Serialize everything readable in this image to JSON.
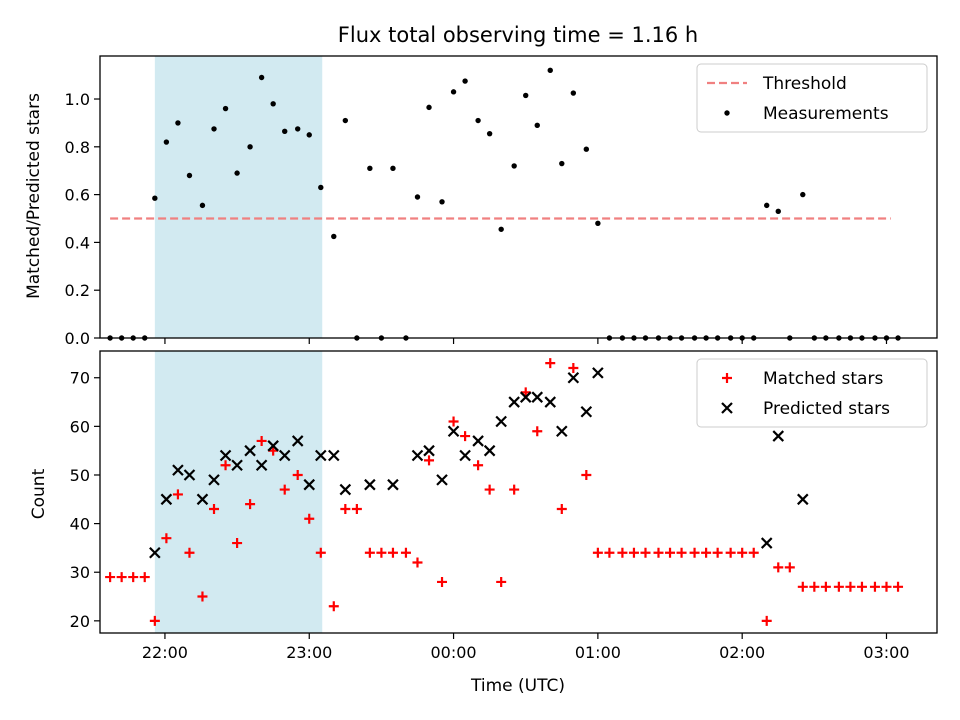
{
  "chart_data": [
    {
      "type": "scatter",
      "title": "Flux total observing time = 1.16 h",
      "xlabel": "",
      "ylabel": "Matched/Predicted stars",
      "ylim": [
        0,
        1.18
      ],
      "yticks": [
        "0.0",
        "0.2",
        "0.4",
        "0.6",
        "0.8",
        "1.0"
      ],
      "xticks": [
        "22:00",
        "23:00",
        "00:00",
        "01:00",
        "02:00",
        "03:00"
      ],
      "x_unit": "hours since 21:00 UTC",
      "xlim": [
        0.55,
        6.35
      ],
      "shaded_interval": [
        0.93,
        2.09
      ],
      "shaded_color": "#add8e6",
      "legend_position": "upper right",
      "series": [
        {
          "name": "Threshold",
          "kind": "dashed-line",
          "color": "#f08080",
          "x": [
            0.62,
            6.03
          ],
          "y": [
            0.5,
            0.5
          ]
        },
        {
          "name": "Measurements",
          "kind": "scatter",
          "color": "#000000",
          "x": [
            0.62,
            0.7,
            0.78,
            0.86,
            0.93,
            1.01,
            1.09,
            1.17,
            1.26,
            1.34,
            1.42,
            1.5,
            1.59,
            1.67,
            1.75,
            1.83,
            1.92,
            2.0,
            2.08,
            2.17,
            2.25,
            2.33,
            2.42,
            2.5,
            2.58,
            2.67,
            2.75,
            2.83,
            2.92,
            3.0,
            3.08,
            3.17,
            3.25,
            3.33,
            3.42,
            3.5,
            3.58,
            3.67,
            3.75,
            3.83,
            3.92,
            4.0,
            4.08,
            4.17,
            4.25,
            4.33,
            4.42,
            4.5,
            4.58,
            4.67,
            4.75,
            4.83,
            4.92,
            5.0,
            5.08,
            5.17,
            5.25,
            5.33,
            5.42,
            5.5,
            5.58,
            5.67,
            5.75,
            5.83,
            5.92,
            6.0,
            6.08
          ],
          "y": [
            0,
            0,
            0,
            0,
            0.585,
            0.82,
            0.9,
            0.68,
            0.555,
            0.875,
            0.96,
            0.69,
            0.8,
            1.09,
            0.98,
            0.865,
            0.875,
            0.85,
            0.63,
            0.425,
            0.91,
            0,
            0.71,
            0,
            0.71,
            0,
            0.59,
            0.965,
            0.57,
            1.03,
            1.075,
            0.91,
            0.855,
            0.455,
            0.72,
            1.015,
            0.89,
            1.12,
            0.73,
            1.025,
            0.79,
            0.48,
            0,
            0,
            0,
            0,
            0,
            0,
            0,
            0,
            0,
            0,
            0,
            0,
            0,
            0.555,
            0.53,
            0,
            0.6,
            0,
            0,
            0,
            0,
            0,
            0,
            0,
            0
          ]
        }
      ]
    },
    {
      "type": "scatter",
      "title": "",
      "xlabel": "Time (UTC)",
      "ylabel": "Count",
      "ylim": [
        17.5,
        75.5
      ],
      "yticks": [
        "20",
        "30",
        "40",
        "50",
        "60",
        "70"
      ],
      "xticks": [
        "22:00",
        "23:00",
        "00:00",
        "01:00",
        "02:00",
        "03:00"
      ],
      "x_unit": "hours since 21:00 UTC",
      "xlim": [
        0.55,
        6.35
      ],
      "shaded_interval": [
        0.93,
        2.09
      ],
      "shaded_color": "#add8e6",
      "legend_position": "upper right",
      "series": [
        {
          "name": "Matched stars",
          "kind": "plus",
          "color": "#ff0000",
          "x": [
            0.62,
            0.7,
            0.78,
            0.86,
            0.93,
            1.01,
            1.09,
            1.17,
            1.26,
            1.34,
            1.42,
            1.5,
            1.59,
            1.67,
            1.75,
            1.83,
            1.92,
            2.0,
            2.08,
            2.17,
            2.25,
            2.33,
            2.42,
            2.5,
            2.58,
            2.67,
            2.75,
            2.83,
            2.92,
            3.0,
            3.08,
            3.17,
            3.25,
            3.33,
            3.42,
            3.5,
            3.58,
            3.67,
            3.75,
            3.83,
            3.92,
            4.0,
            4.08,
            4.17,
            4.25,
            4.33,
            4.42,
            4.5,
            4.58,
            4.67,
            4.75,
            4.83,
            4.92,
            5.0,
            5.08,
            5.17,
            5.25,
            5.33,
            5.42,
            5.5,
            5.58,
            5.67,
            5.75,
            5.83,
            5.92,
            6.0,
            6.08
          ],
          "y": [
            29,
            29,
            29,
            29,
            20,
            37,
            46,
            34,
            25,
            43,
            52,
            36,
            44,
            57,
            55,
            47,
            50,
            41,
            34,
            23,
            43,
            43,
            34,
            34,
            34,
            34,
            32,
            53,
            28,
            61,
            58,
            52,
            47,
            28,
            47,
            67,
            59,
            73,
            43,
            72,
            50,
            34,
            34,
            34,
            34,
            34,
            34,
            34,
            34,
            34,
            34,
            34,
            34,
            34,
            34,
            20,
            31,
            31,
            27,
            27,
            27,
            27,
            27,
            27,
            27,
            27,
            27
          ]
        },
        {
          "name": "Predicted stars",
          "kind": "x",
          "color": "#000000",
          "x": [
            0.93,
            1.01,
            1.09,
            1.17,
            1.26,
            1.34,
            1.42,
            1.5,
            1.59,
            1.67,
            1.75,
            1.83,
            1.92,
            2.0,
            2.08,
            2.17,
            2.25,
            2.42,
            2.58,
            2.75,
            2.83,
            2.92,
            3.0,
            3.08,
            3.17,
            3.25,
            3.33,
            3.42,
            3.5,
            3.58,
            3.67,
            3.75,
            3.83,
            3.92,
            4.0,
            5.17,
            5.25,
            5.42
          ],
          "y": [
            34,
            45,
            51,
            50,
            45,
            49,
            54,
            52,
            55,
            52,
            56,
            54,
            57,
            48,
            54,
            54,
            47,
            48,
            48,
            54,
            55,
            49,
            59,
            54,
            57,
            55,
            61,
            65,
            66,
            66,
            65,
            59,
            70,
            63,
            71,
            36,
            58,
            45
          ]
        }
      ]
    }
  ]
}
